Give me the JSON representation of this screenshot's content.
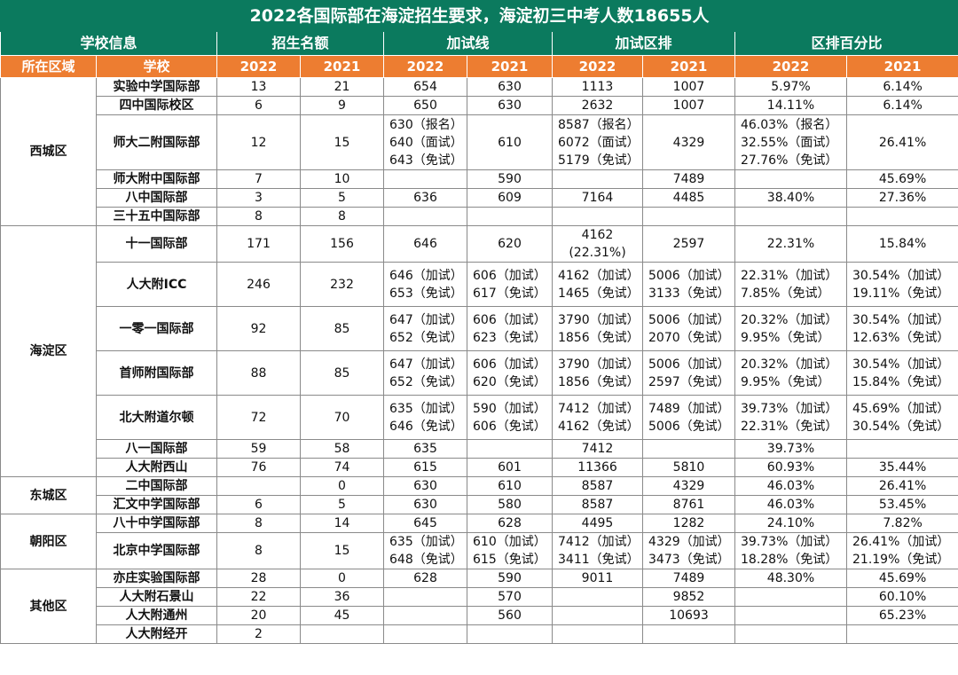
{
  "title": "2022各国际部在海淀招生要求，海淀初三中考人数18655人",
  "groups": [
    "学校信息",
    "招生名额",
    "加试线",
    "加试区排",
    "区排百分比"
  ],
  "subheaders": [
    "所在区域",
    "学校",
    "2022",
    "2021",
    "2022",
    "2021",
    "2022",
    "2021",
    "2022",
    "2021"
  ],
  "regions": [
    {
      "name": "西城区",
      "rows": [
        {
          "school": "实验中学国际部",
          "q22": "13",
          "q21": "21",
          "l22": "654",
          "l21": "630",
          "r22": "1113",
          "r21": "1007",
          "p22": "5.97%",
          "p21": "6.14%"
        },
        {
          "school": "四中国际校区",
          "q22": "6",
          "q21": "9",
          "l22": "650",
          "l21": "630",
          "r22": "2632",
          "r21": "1007",
          "p22": "14.11%",
          "p21": "6.14%"
        },
        {
          "school": "师大二附国际部",
          "q22": "12",
          "q21": "15",
          "l22": "630（报名）\n640（面试）\n643（免试）",
          "l21": "610",
          "r22": "8587（报名）\n6072（面试）\n5179（免试）",
          "r21": "4329",
          "p22": "46.03%（报名）\n32.55%（面试）\n27.76%（免试）",
          "p21": "26.41%"
        },
        {
          "school": "师大附中国际部",
          "q22": "7",
          "q21": "10",
          "l22": "",
          "l21": "590",
          "r22": "",
          "r21": "7489",
          "p22": "",
          "p21": "45.69%"
        },
        {
          "school": "八中国际部",
          "q22": "3",
          "q21": "5",
          "l22": "636",
          "l21": "609",
          "r22": "7164",
          "r21": "4485",
          "p22": "38.40%",
          "p21": "27.36%"
        },
        {
          "school": "三十五中国际部",
          "q22": "8",
          "q21": "8",
          "l22": "",
          "l21": "",
          "r22": "",
          "r21": "",
          "p22": "",
          "p21": ""
        }
      ]
    },
    {
      "name": "海淀区",
      "rows": [
        {
          "school": "十一国际部",
          "q22": "171",
          "q21": "156",
          "l22": "646",
          "l21": "620",
          "r22": "4162\n(22.31%)",
          "r21": "2597",
          "p22": "22.31%",
          "p21": "15.84%"
        },
        {
          "school": "人大附ICC",
          "q22": "246",
          "q21": "232",
          "l22": "646（加试）\n653（免试）",
          "l21": "606（加试）\n617（免试）",
          "r22": "4162（加试）\n1465（免试）",
          "r21": "5006（加试）\n3133（免试）",
          "p22": "22.31%（加试）\n7.85%（免试）",
          "p21": "30.54%（加试）\n19.11%（免试）"
        },
        {
          "school": "一零一国际部",
          "q22": "92",
          "q21": "85",
          "l22": "647（加试）\n652（免试）",
          "l21": "606（加试）\n623（免试）",
          "r22": "3790（加试）\n1856（免试）",
          "r21": "5006（加试）\n2070（免试）",
          "p22": "20.32%（加试）\n9.95%（免试）",
          "p21": "30.54%（加试）\n12.63%（免试）"
        },
        {
          "school": "首师附国际部",
          "q22": "88",
          "q21": "85",
          "l22": "647（加试）\n652（免试）",
          "l21": "606（加试）\n620（免试）",
          "r22": "3790（加试）\n1856（免试）",
          "r21": "5006（加试）\n2597（免试）",
          "p22": "20.32%（加试）\n9.95%（免试）",
          "p21": "30.54%（加试）\n15.84%（免试）"
        },
        {
          "school": "北大附道尔顿",
          "q22": "72",
          "q21": "70",
          "l22": "635（加试）\n646（免试）",
          "l21": "590（加试）\n606（免试）",
          "r22": "7412（加试）\n4162（免试）",
          "r21": "7489（加试）\n5006（免试）",
          "p22": "39.73%（加试）\n22.31%（免试）",
          "p21": "45.69%（加试）\n30.54%（免试）"
        },
        {
          "school": "八一国际部",
          "q22": "59",
          "q21": "58",
          "l22": "635",
          "l21": "",
          "r22": "7412",
          "r21": "",
          "p22": "39.73%",
          "p21": ""
        },
        {
          "school": "人大附西山",
          "q22": "76",
          "q21": "74",
          "l22": "615",
          "l21": "601",
          "r22": "11366",
          "r21": "5810",
          "p22": "60.93%",
          "p21": "35.44%"
        }
      ]
    },
    {
      "name": "东城区",
      "rows": [
        {
          "school": "二中国际部",
          "q22": "",
          "q21": "0",
          "l22": "630",
          "l21": "610",
          "r22": "8587",
          "r21": "4329",
          "p22": "46.03%",
          "p21": "26.41%"
        },
        {
          "school": "汇文中学国际部",
          "q22": "6",
          "q21": "5",
          "l22": "630",
          "l21": "580",
          "r22": "8587",
          "r21": "8761",
          "p22": "46.03%",
          "p21": "53.45%"
        }
      ]
    },
    {
      "name": "朝阳区",
      "rows": [
        {
          "school": "八十中学国际部",
          "q22": "8",
          "q21": "14",
          "l22": "645",
          "l21": "628",
          "r22": "4495",
          "r21": "1282",
          "p22": "24.10%",
          "p21": "7.82%"
        },
        {
          "school": "北京中学国际部",
          "q22": "8",
          "q21": "15",
          "l22": "635（加试）\n648（免试）",
          "l21": "610（加试）\n615（免试）",
          "r22": "7412（加试）\n3411（免试）",
          "r21": "4329（加试）\n3473（免试）",
          "p22": "39.73%（加试）\n18.28%（免试）",
          "p21": "26.41%（加试）\n21.19%（免试）"
        }
      ]
    },
    {
      "name": "其他区",
      "rows": [
        {
          "school": "亦庄实验国际部",
          "q22": "28",
          "q21": "0",
          "l22": "628",
          "l21": "590",
          "r22": "9011",
          "r21": "7489",
          "p22": "48.30%",
          "p21": "45.69%"
        },
        {
          "school": "人大附石景山",
          "q22": "22",
          "q21": "36",
          "l22": "",
          "l21": "570",
          "r22": "",
          "r21": "9852",
          "p22": "",
          "p21": "60.10%"
        },
        {
          "school": "人大附通州",
          "q22": "20",
          "q21": "45",
          "l22": "",
          "l21": "560",
          "r22": "",
          "r21": "10693",
          "p22": "",
          "p21": "65.23%"
        },
        {
          "school": "人大附经开",
          "q22": "2",
          "q21": "",
          "l22": "",
          "l21": "",
          "r22": "",
          "r21": "",
          "p22": "",
          "p21": ""
        }
      ]
    }
  ]
}
